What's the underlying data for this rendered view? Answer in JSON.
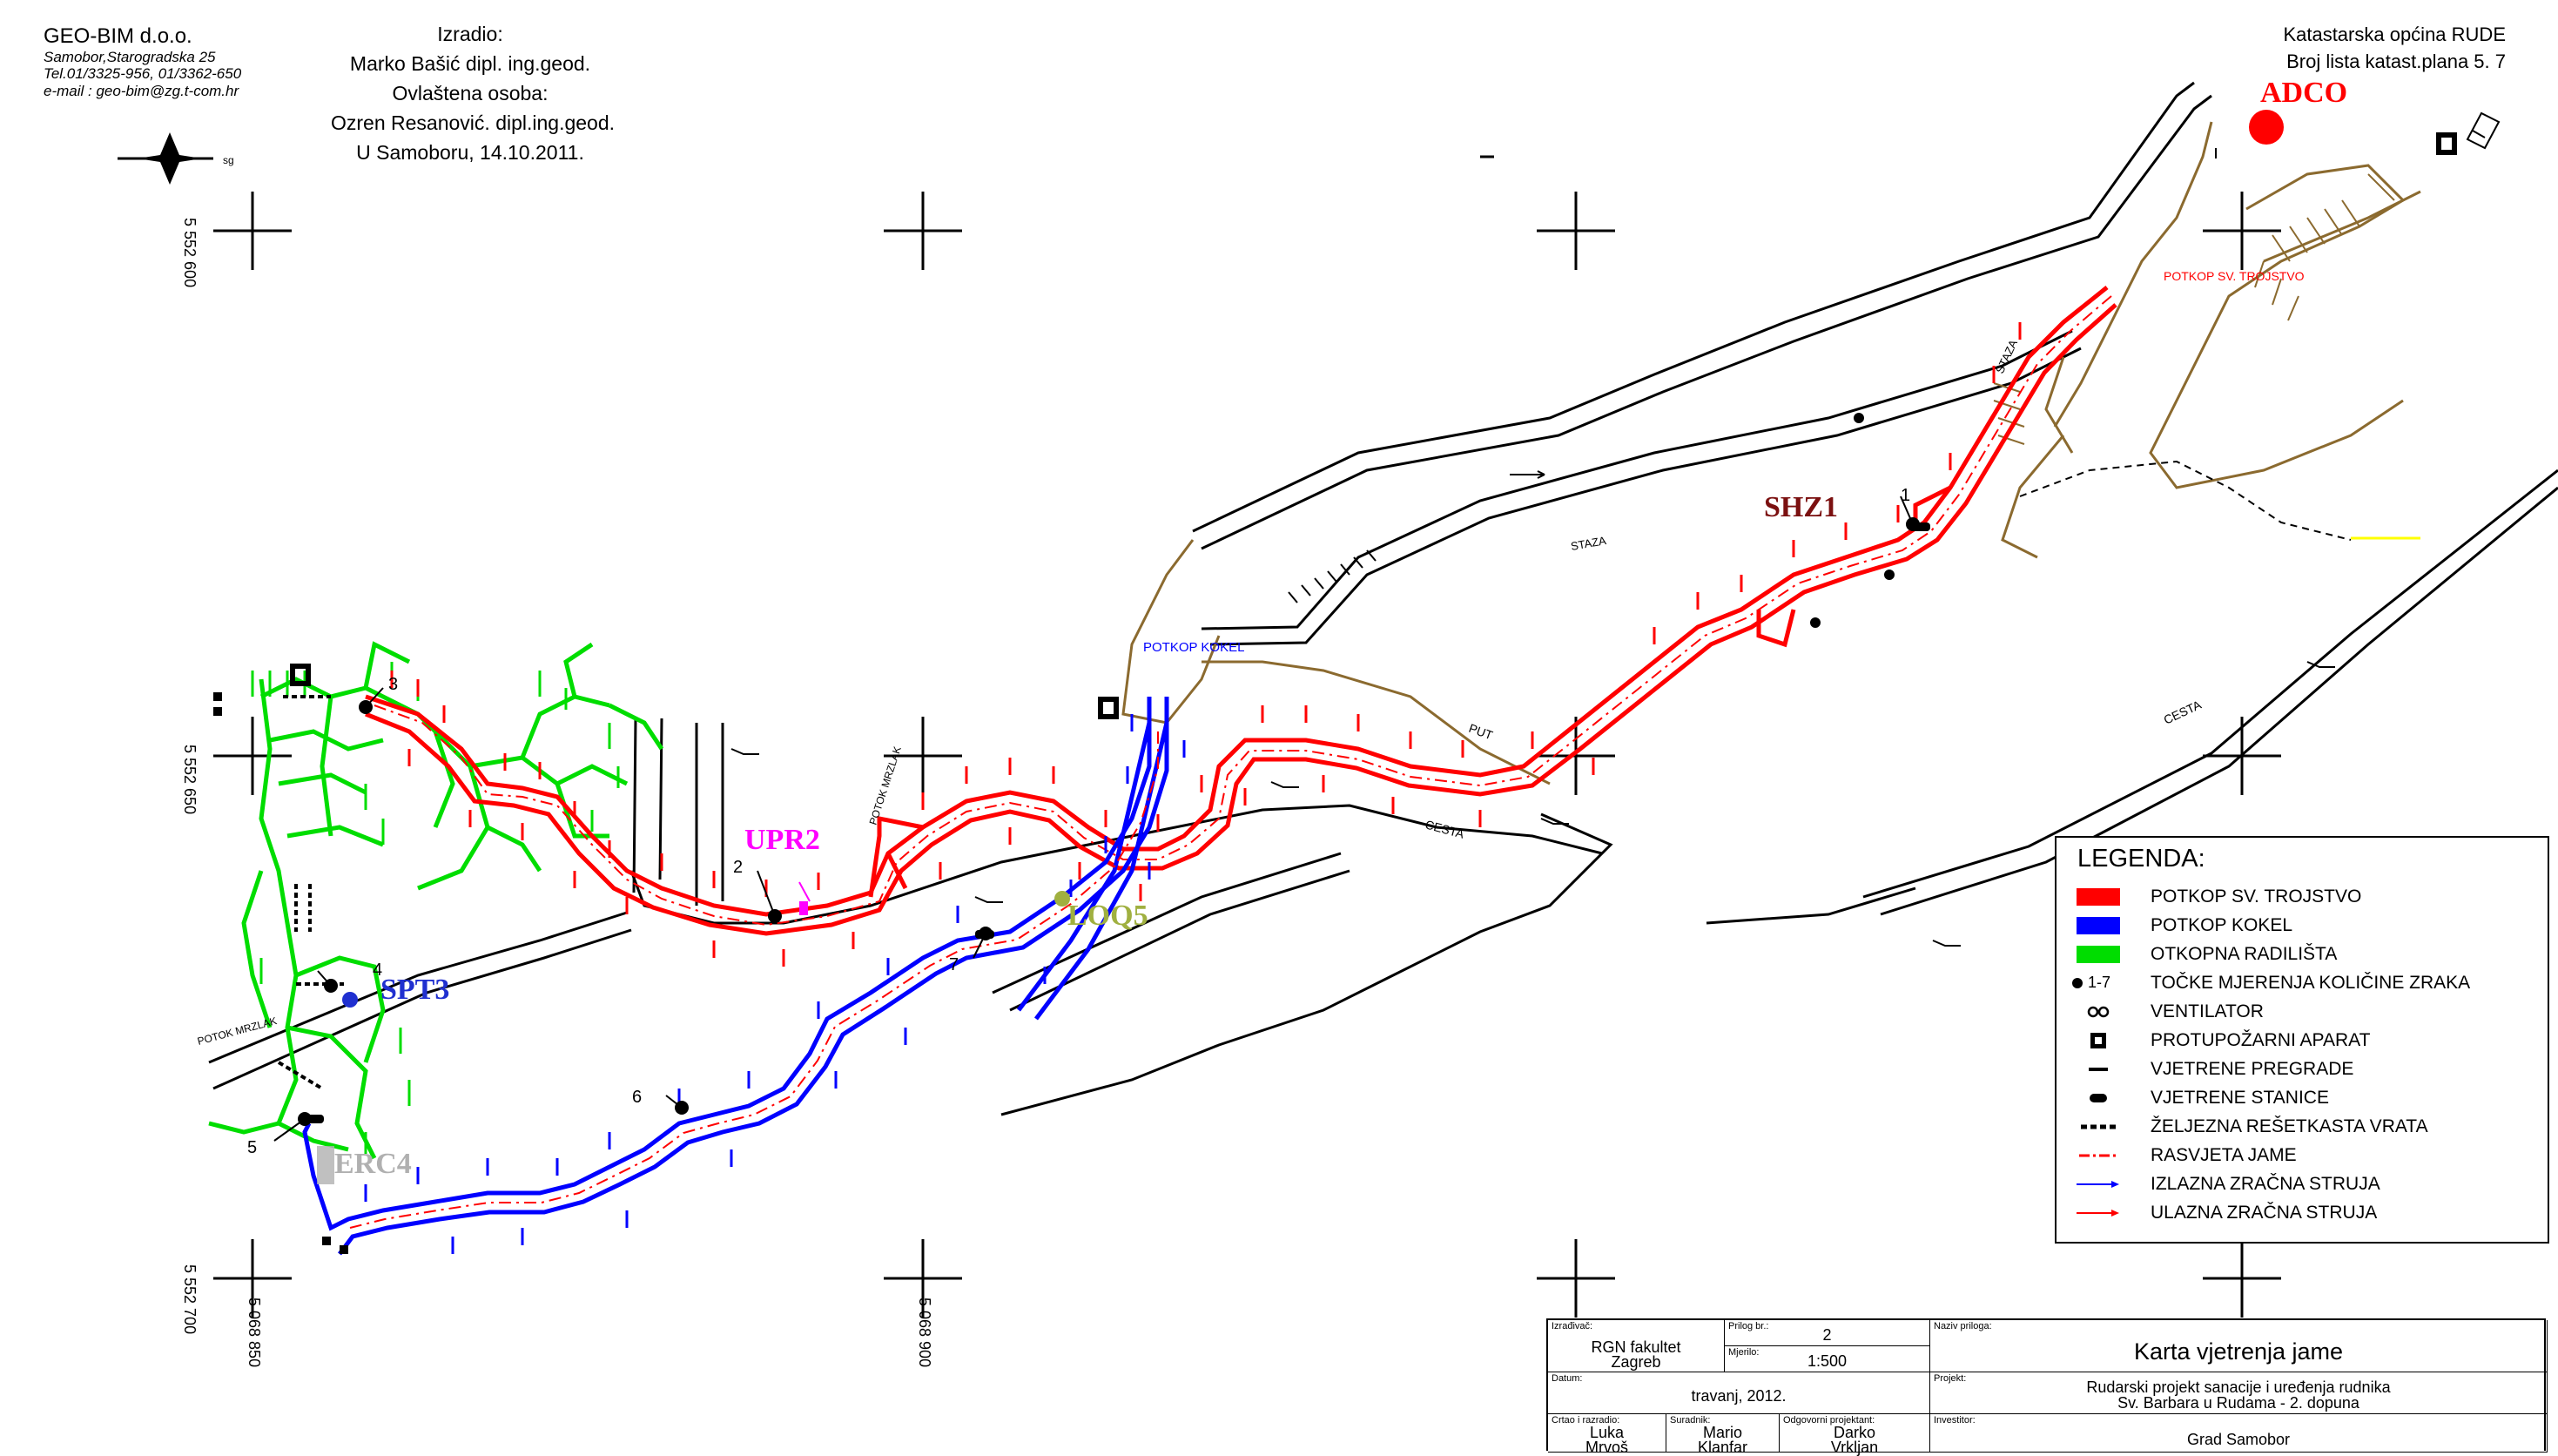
{
  "header": {
    "company": {
      "name": "GEO-BIM d.o.o.",
      "address": "Samobor,Starogradska 25",
      "phone": "Tel.01/3325-956, 01/3362-650",
      "email": "e-mail : geo-bim@zg.t-com.hr"
    },
    "prepared": {
      "label": "Izradio:",
      "author": "Marko Bašić dipl. ing.geod.",
      "authorized_label": "Ovlaštena osoba:",
      "authorized": "Ozren Resanović. dipl.ing.geod.",
      "place_date": "U Samoboru, 14.10.2011."
    },
    "cadastre": {
      "municipality": "Katastarska općina RUDE",
      "sheet": "Broj lista katast.plana  5. 7"
    }
  },
  "north_label": "sg",
  "grid_labels": {
    "y600": "5 552 600",
    "y650": "5 552 650",
    "y700": "5 552 700",
    "x850": "5 068 850",
    "x900": "5 068 900"
  },
  "points": {
    "adco": "ADCO",
    "shz1": "SHZ1",
    "upr2": "UPR2",
    "spt3": "SPT3",
    "loq5": "LOQ5",
    "erc4": "ERC4"
  },
  "measurement_points": [
    "1",
    "2",
    "3",
    "4",
    "5",
    "6",
    "7"
  ],
  "map_text": {
    "potkop_sv_trojstvo": "POTKOP SV. TROJSTVO",
    "potkop_kokel": "POTKOP KOKEL",
    "staza_1": "STAZA",
    "staza_2": "STAZA",
    "cesta_1": "CESTA",
    "cesta_2": "CESTA",
    "put": "PUT",
    "potok_mrzlak_1": "POTOK MRZLAK",
    "potok_mrzlak_2": "POTOK MRZLAK"
  },
  "colors": {
    "sv_trojstvo": "#ff0000",
    "kokel": "#0000ff",
    "otkopna": "#00dd00",
    "surface": "#8b6a2f",
    "adco": "#ff0000",
    "shz1": "#7b1010",
    "upr2": "#ff00ff",
    "spt3": "#2030d0",
    "loq5": "#a0b040",
    "erc4": "#b0b0b0"
  },
  "legend": {
    "title": "LEGENDA:",
    "items": [
      {
        "label": "POTKOP SV. TROJSTVO",
        "symbol": "red-box"
      },
      {
        "label": "POTKOP KOKEL",
        "symbol": "blue-box"
      },
      {
        "label": "OTKOPNA RADILIŠTA",
        "symbol": "green-box"
      },
      {
        "label": "TOČKE MJERENJA KOLIČINE ZRAKA",
        "symbol": "point",
        "prefix": "1-7"
      },
      {
        "label": "VENTILATOR",
        "symbol": "fan"
      },
      {
        "label": "PROTUPOŽARNI APARAT",
        "symbol": "extinguisher"
      },
      {
        "label": "VJETRENE PREGRADE",
        "symbol": "bar"
      },
      {
        "label": "VJETRENE STANICE",
        "symbol": "station"
      },
      {
        "label": "ŽELJEZNA REŠETKASTA VRATA",
        "symbol": "dashed"
      },
      {
        "label": "RASVJETA JAME",
        "symbol": "red-dashdot"
      },
      {
        "label": "IZLAZNA ZRAČNA STRUJA",
        "symbol": "blue-arrow"
      },
      {
        "label": "ULAZNA ZRAČNA STRUJA",
        "symbol": "red-arrow"
      }
    ]
  },
  "title_block": {
    "izradivac_label": "Izrađivač:",
    "izradivac": "RGN fakultet",
    "izradivac_city": "Zagreb",
    "prilog_label": "Prilog br.:",
    "prilog": "2",
    "mjerilo_label": "Mjerilo:",
    "mjerilo": "1:500",
    "naziv_label": "Naziv priloga:",
    "naziv": "Karta vjetrenja jame",
    "datum_label": "Datum:",
    "datum": "travanj, 2012.",
    "projekt_label": "Projekt:",
    "projekt_1": "Rudarski projekt sanacije i uređenja rudnika",
    "projekt_2": "Sv. Barbara u Rudama - 2. dopuna",
    "crtao_label": "Crtao i razradio:",
    "crtao_1": "Luka",
    "crtao_2": "Mrvoš",
    "suradnik_label": "Suradnik:",
    "suradnik_1": "Mario",
    "suradnik_2": "Klanfar",
    "odgovorni_label": "Odgovorni projektant:",
    "odgovorni_1": "Darko",
    "odgovorni_2": "Vrkljan",
    "investitor_label": "Investitor:",
    "investitor": "Grad Samobor"
  }
}
